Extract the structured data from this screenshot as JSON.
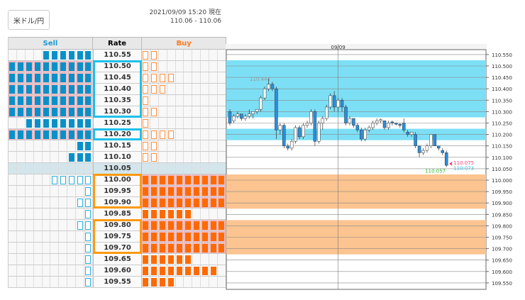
{
  "header": {
    "pair_button": "米ドル/円",
    "timestamp": "2021/09/09 15:20 現在",
    "bid_ask": "110.06 - 110.06"
  },
  "table": {
    "headers": {
      "sell": "Sell",
      "rate": "Rate",
      "buy": "Buy"
    },
    "colors": {
      "sell_header": "#1a9ad6",
      "buy_header": "#ff7a20",
      "sell_box": "#1ec0ea",
      "buy_box": "#ff9a10"
    },
    "current_rate": "110.05",
    "rows": [
      {
        "rate": "110.55",
        "sell": 6,
        "sell_style": "filled",
        "buy": 2,
        "buy_style": "hollow"
      },
      {
        "rate": "110.50",
        "sell": 10,
        "sell_style": "filled",
        "buy": 2,
        "buy_style": "hollow",
        "sell_highlight": true
      },
      {
        "rate": "110.45",
        "sell": 10,
        "sell_style": "filled",
        "buy": 4,
        "buy_style": "hollow",
        "sell_highlight": true
      },
      {
        "rate": "110.40",
        "sell": 10,
        "sell_style": "filled",
        "buy": 3,
        "buy_style": "hollow",
        "sell_highlight": true
      },
      {
        "rate": "110.35",
        "sell": 10,
        "sell_style": "filled",
        "buy": 1,
        "buy_style": "hollow",
        "sell_highlight": true
      },
      {
        "rate": "110.30",
        "sell": 10,
        "sell_style": "filled",
        "buy": 2,
        "buy_style": "hollow",
        "sell_highlight": true
      },
      {
        "rate": "110.25",
        "sell": 8,
        "sell_style": "filled",
        "buy": 1,
        "buy_style": "hollow"
      },
      {
        "rate": "110.20",
        "sell": 10,
        "sell_style": "filled",
        "buy": 4,
        "buy_style": "hollow",
        "sell_highlight": true
      },
      {
        "rate": "110.15",
        "sell": 2,
        "sell_style": "filled",
        "buy": 2,
        "buy_style": "hollow"
      },
      {
        "rate": "110.10",
        "sell": 3,
        "sell_style": "filled",
        "buy": 2,
        "buy_style": "hollow"
      },
      {
        "rate": "110.05",
        "sell": 0,
        "sell_style": "filled",
        "buy": 0,
        "buy_style": "hollow",
        "current": true
      },
      {
        "rate": "110.00",
        "sell": 5,
        "sell_style": "hollow",
        "buy": 10,
        "buy_style": "filled",
        "buy_highlight": true
      },
      {
        "rate": "109.95",
        "sell": 1,
        "sell_style": "hollow",
        "buy": 10,
        "buy_style": "filled",
        "buy_highlight": true
      },
      {
        "rate": "109.90",
        "sell": 2,
        "sell_style": "hollow",
        "buy": 10,
        "buy_style": "filled",
        "buy_highlight": true
      },
      {
        "rate": "109.85",
        "sell": 1,
        "sell_style": "hollow",
        "buy": 6,
        "buy_style": "filled"
      },
      {
        "rate": "109.80",
        "sell": 2,
        "sell_style": "hollow",
        "buy": 10,
        "buy_style": "filled",
        "buy_highlight": true
      },
      {
        "rate": "109.75",
        "sell": 1,
        "sell_style": "hollow",
        "buy": 10,
        "buy_style": "filled",
        "buy_highlight": true
      },
      {
        "rate": "109.70",
        "sell": 1,
        "sell_style": "hollow",
        "buy": 10,
        "buy_style": "filled",
        "buy_highlight": true
      },
      {
        "rate": "109.65",
        "sell": 1,
        "sell_style": "hollow",
        "buy": 6,
        "buy_style": "filled"
      },
      {
        "rate": "109.60",
        "sell": 1,
        "sell_style": "hollow",
        "buy": 9,
        "buy_style": "filled"
      },
      {
        "rate": "109.55",
        "sell": 1,
        "sell_style": "hollow",
        "buy": 4,
        "buy_style": "filled"
      }
    ],
    "sell_boxes": [
      [
        "110.50",
        "110.30"
      ],
      [
        "110.20",
        "110.20"
      ]
    ],
    "buy_boxes": [
      [
        "110.00",
        "109.90"
      ],
      [
        "109.80",
        "109.70"
      ]
    ]
  },
  "chart_data": {
    "type": "candlestick",
    "date_label": "09/09",
    "ylim": [
      109.55,
      110.55
    ],
    "yticks": [
      "110.550",
      "110.500",
      "110.450",
      "110.400",
      "110.350",
      "110.300",
      "110.250",
      "110.200",
      "110.150",
      "110.100",
      "110.050",
      "110.000",
      "109.950",
      "109.900",
      "109.850",
      "109.800",
      "109.750",
      "109.700",
      "109.650",
      "109.600",
      "109.550"
    ],
    "sell_bands": [
      [
        110.275,
        110.525
      ],
      [
        110.175,
        110.225
      ]
    ],
    "buy_bands": [
      [
        109.875,
        110.025
      ],
      [
        109.675,
        109.825
      ]
    ],
    "annotations": {
      "high": "110.444",
      "ask": "110.075",
      "bid": "110.073",
      "low": "110.057"
    },
    "colors": {
      "sell_band": "#7ddff5",
      "buy_band": "#fbc490",
      "up": "#ffffff",
      "down": "#2a8ee0",
      "ask": "#f0407a",
      "bid": "#30c0f0",
      "low": "#30c030",
      "high": "#999999"
    },
    "date_index": 28,
    "candles": [
      [
        110.3,
        110.31,
        110.24,
        110.25
      ],
      [
        110.26,
        110.29,
        110.25,
        110.28
      ],
      [
        110.28,
        110.3,
        110.27,
        110.29
      ],
      [
        110.29,
        110.29,
        110.26,
        110.27
      ],
      [
        110.27,
        110.29,
        110.26,
        110.28
      ],
      [
        110.28,
        110.31,
        110.27,
        110.29
      ],
      [
        110.29,
        110.3,
        110.27,
        110.3
      ],
      [
        110.3,
        110.31,
        110.29,
        110.31
      ],
      [
        110.31,
        110.37,
        110.3,
        110.36
      ],
      [
        110.36,
        110.41,
        110.35,
        110.4
      ],
      [
        110.4,
        110.444,
        110.39,
        110.42
      ],
      [
        110.42,
        110.43,
        110.39,
        110.4
      ],
      [
        110.4,
        110.41,
        110.18,
        110.22
      ],
      [
        110.22,
        110.25,
        110.2,
        110.24
      ],
      [
        110.24,
        110.25,
        110.14,
        110.15
      ],
      [
        110.15,
        110.16,
        110.13,
        110.14
      ],
      [
        110.14,
        110.18,
        110.13,
        110.17
      ],
      [
        110.17,
        110.24,
        110.16,
        110.23
      ],
      [
        110.23,
        110.24,
        110.18,
        110.19
      ],
      [
        110.19,
        110.25,
        110.18,
        110.24
      ],
      [
        110.24,
        110.26,
        110.23,
        110.25
      ],
      [
        110.25,
        110.31,
        110.24,
        110.3
      ],
      [
        110.3,
        110.31,
        110.15,
        110.17
      ],
      [
        110.17,
        110.26,
        110.16,
        110.25
      ],
      [
        110.25,
        110.28,
        110.22,
        110.27
      ],
      [
        110.27,
        110.33,
        110.26,
        110.32
      ],
      [
        110.32,
        110.38,
        110.31,
        110.37
      ],
      [
        110.37,
        110.39,
        110.3,
        110.32
      ],
      [
        110.32,
        110.36,
        110.3,
        110.35
      ],
      [
        110.35,
        110.36,
        110.3,
        110.32
      ],
      [
        110.32,
        110.33,
        110.24,
        110.25
      ],
      [
        110.25,
        110.28,
        110.24,
        110.27
      ],
      [
        110.27,
        110.27,
        110.23,
        110.24
      ],
      [
        110.24,
        110.25,
        110.21,
        110.22
      ],
      [
        110.22,
        110.23,
        110.17,
        110.18
      ],
      [
        110.18,
        110.23,
        110.17,
        110.22
      ],
      [
        110.22,
        110.24,
        110.21,
        110.23
      ],
      [
        110.23,
        110.26,
        110.22,
        110.25
      ],
      [
        110.25,
        110.27,
        110.24,
        110.26
      ],
      [
        110.26,
        110.27,
        110.25,
        110.265
      ],
      [
        110.26,
        110.26,
        110.22,
        110.23
      ],
      [
        110.23,
        110.26,
        110.22,
        110.25
      ],
      [
        110.255,
        110.26,
        110.24,
        110.25
      ],
      [
        110.25,
        110.25,
        110.24,
        110.245
      ],
      [
        110.245,
        110.25,
        110.23,
        110.24
      ],
      [
        110.25,
        110.27,
        110.21,
        110.22
      ],
      [
        110.21,
        110.22,
        110.19,
        110.2
      ],
      [
        110.2,
        110.21,
        110.19,
        110.21
      ],
      [
        110.2,
        110.21,
        110.14,
        110.15
      ],
      [
        110.15,
        110.15,
        110.1,
        110.12
      ],
      [
        110.12,
        110.14,
        110.11,
        110.13
      ],
      [
        110.13,
        110.16,
        110.12,
        110.15
      ],
      [
        110.15,
        110.2,
        110.14,
        110.2
      ],
      [
        110.2,
        110.2,
        110.15,
        110.15
      ],
      [
        110.15,
        110.15,
        110.13,
        110.14
      ],
      [
        110.13,
        110.14,
        110.11,
        110.12
      ],
      [
        110.12,
        110.13,
        110.057,
        110.065
      ]
    ]
  }
}
